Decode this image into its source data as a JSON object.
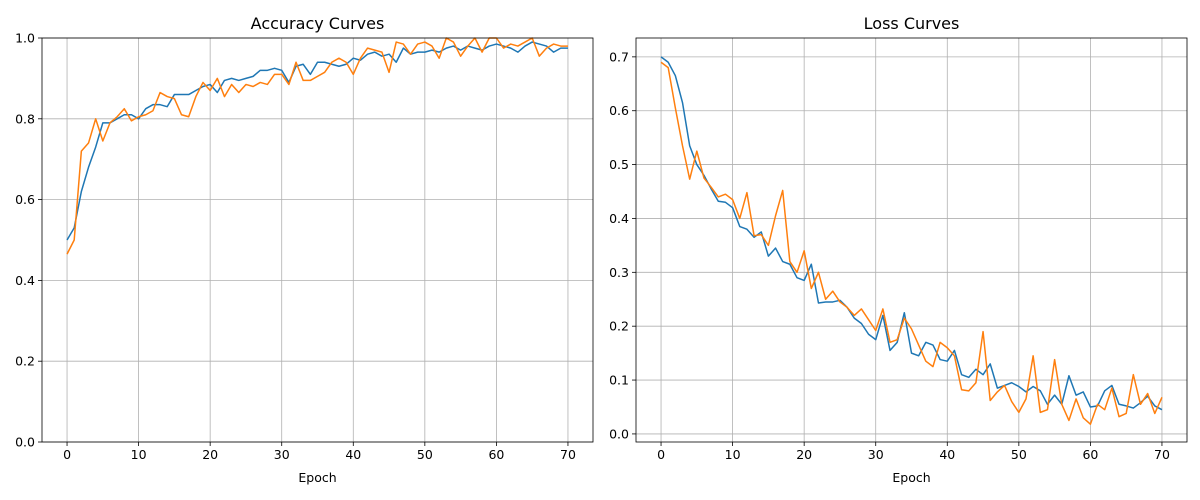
{
  "chart_data": [
    {
      "type": "line",
      "title": "Accuracy Curves",
      "xlabel": "Epoch",
      "ylabel": "",
      "xlim": [
        -3.5,
        73.5
      ],
      "ylim": [
        0.0,
        1.0
      ],
      "xticks": [
        0,
        10,
        20,
        30,
        40,
        50,
        60,
        70
      ],
      "xtick_labels": [
        "0",
        "10",
        "20",
        "30",
        "40",
        "50",
        "60",
        "70"
      ],
      "yticks": [
        0.0,
        0.2,
        0.4,
        0.6,
        0.8,
        1.0
      ],
      "ytick_labels": [
        "0.0",
        "0.2",
        "0.4",
        "0.6",
        "0.8",
        "1.0"
      ],
      "grid": true,
      "x": [
        0,
        1,
        2,
        3,
        4,
        5,
        6,
        7,
        8,
        9,
        10,
        11,
        12,
        13,
        14,
        15,
        16,
        17,
        18,
        19,
        20,
        21,
        22,
        23,
        24,
        25,
        26,
        27,
        28,
        29,
        30,
        31,
        32,
        33,
        34,
        35,
        36,
        37,
        38,
        39,
        40,
        41,
        42,
        43,
        44,
        45,
        46,
        47,
        48,
        49,
        50,
        51,
        52,
        53,
        54,
        55,
        56,
        57,
        58,
        59,
        60,
        61,
        62,
        63,
        64,
        65,
        66,
        67,
        68,
        69,
        70
      ],
      "series": [
        {
          "color": "#1f77b4",
          "values": [
            0.5,
            0.53,
            0.62,
            0.68,
            0.73,
            0.79,
            0.79,
            0.8,
            0.81,
            0.81,
            0.8,
            0.825,
            0.835,
            0.835,
            0.83,
            0.86,
            0.86,
            0.86,
            0.87,
            0.88,
            0.885,
            0.865,
            0.895,
            0.9,
            0.895,
            0.9,
            0.905,
            0.92,
            0.92,
            0.925,
            0.92,
            0.89,
            0.93,
            0.935,
            0.91,
            0.94,
            0.94,
            0.935,
            0.93,
            0.935,
            0.95,
            0.945,
            0.96,
            0.965,
            0.955,
            0.96,
            0.94,
            0.975,
            0.96,
            0.965,
            0.965,
            0.97,
            0.965,
            0.975,
            0.98,
            0.97,
            0.98,
            0.975,
            0.97,
            0.98,
            0.985,
            0.98,
            0.975,
            0.965,
            0.98,
            0.99,
            0.985,
            0.98,
            0.965,
            0.975,
            0.975
          ]
        },
        {
          "color": "#ff7f0e",
          "values": [
            0.465,
            0.5,
            0.72,
            0.74,
            0.8,
            0.745,
            0.79,
            0.805,
            0.825,
            0.795,
            0.805,
            0.81,
            0.82,
            0.865,
            0.855,
            0.85,
            0.81,
            0.805,
            0.855,
            0.89,
            0.87,
            0.9,
            0.855,
            0.885,
            0.865,
            0.885,
            0.88,
            0.89,
            0.885,
            0.91,
            0.91,
            0.885,
            0.94,
            0.895,
            0.895,
            0.905,
            0.915,
            0.94,
            0.95,
            0.94,
            0.91,
            0.95,
            0.975,
            0.97,
            0.965,
            0.915,
            0.99,
            0.985,
            0.96,
            0.985,
            0.99,
            0.98,
            0.95,
            1.0,
            0.99,
            0.955,
            0.98,
            1.0,
            0.965,
            1.0,
            1.0,
            0.975,
            0.985,
            0.98,
            0.99,
            1.0,
            0.955,
            0.975,
            0.985,
            0.98,
            0.98
          ]
        }
      ]
    },
    {
      "type": "line",
      "title": "Loss Curves",
      "xlabel": "Epoch",
      "ylabel": "",
      "xlim": [
        -3.5,
        73.5
      ],
      "ylim": [
        -0.015,
        0.735
      ],
      "xticks": [
        0,
        10,
        20,
        30,
        40,
        50,
        60,
        70
      ],
      "xtick_labels": [
        "0",
        "10",
        "20",
        "30",
        "40",
        "50",
        "60",
        "70"
      ],
      "yticks": [
        0.0,
        0.1,
        0.2,
        0.3,
        0.4,
        0.5,
        0.6,
        0.7
      ],
      "ytick_labels": [
        "0.0",
        "0.1",
        "0.2",
        "0.3",
        "0.4",
        "0.5",
        "0.6",
        "0.7"
      ],
      "grid": true,
      "x": [
        0,
        1,
        2,
        3,
        4,
        5,
        6,
        7,
        8,
        9,
        10,
        11,
        12,
        13,
        14,
        15,
        16,
        17,
        18,
        19,
        20,
        21,
        22,
        23,
        24,
        25,
        26,
        27,
        28,
        29,
        30,
        31,
        32,
        33,
        34,
        35,
        36,
        37,
        38,
        39,
        40,
        41,
        42,
        43,
        44,
        45,
        46,
        47,
        48,
        49,
        50,
        51,
        52,
        53,
        54,
        55,
        56,
        57,
        58,
        59,
        60,
        61,
        62,
        63,
        64,
        65,
        66,
        67,
        68,
        69,
        70
      ],
      "series": [
        {
          "color": "#1f77b4",
          "values": [
            0.7,
            0.69,
            0.665,
            0.615,
            0.535,
            0.5,
            0.48,
            0.455,
            0.432,
            0.43,
            0.42,
            0.385,
            0.38,
            0.365,
            0.375,
            0.33,
            0.345,
            0.32,
            0.315,
            0.29,
            0.285,
            0.315,
            0.243,
            0.245,
            0.245,
            0.248,
            0.235,
            0.215,
            0.205,
            0.185,
            0.175,
            0.22,
            0.155,
            0.17,
            0.225,
            0.15,
            0.145,
            0.17,
            0.165,
            0.138,
            0.135,
            0.155,
            0.11,
            0.105,
            0.12,
            0.11,
            0.13,
            0.085,
            0.09,
            0.095,
            0.088,
            0.078,
            0.088,
            0.08,
            0.055,
            0.072,
            0.055,
            0.108,
            0.072,
            0.078,
            0.05,
            0.052,
            0.08,
            0.09,
            0.055,
            0.052,
            0.048,
            0.058,
            0.07,
            0.052,
            0.045
          ]
        },
        {
          "color": "#ff7f0e",
          "values": [
            0.69,
            0.68,
            0.605,
            0.535,
            0.473,
            0.525,
            0.475,
            0.458,
            0.44,
            0.445,
            0.435,
            0.4,
            0.448,
            0.368,
            0.37,
            0.35,
            0.405,
            0.452,
            0.32,
            0.3,
            0.34,
            0.27,
            0.3,
            0.25,
            0.265,
            0.245,
            0.235,
            0.22,
            0.232,
            0.212,
            0.192,
            0.232,
            0.17,
            0.175,
            0.215,
            0.195,
            0.165,
            0.135,
            0.125,
            0.17,
            0.16,
            0.145,
            0.082,
            0.08,
            0.095,
            0.19,
            0.062,
            0.078,
            0.09,
            0.06,
            0.04,
            0.065,
            0.145,
            0.04,
            0.045,
            0.138,
            0.055,
            0.025,
            0.065,
            0.03,
            0.018,
            0.055,
            0.045,
            0.085,
            0.032,
            0.038,
            0.11,
            0.055,
            0.075,
            0.038,
            0.068
          ]
        }
      ]
    }
  ]
}
